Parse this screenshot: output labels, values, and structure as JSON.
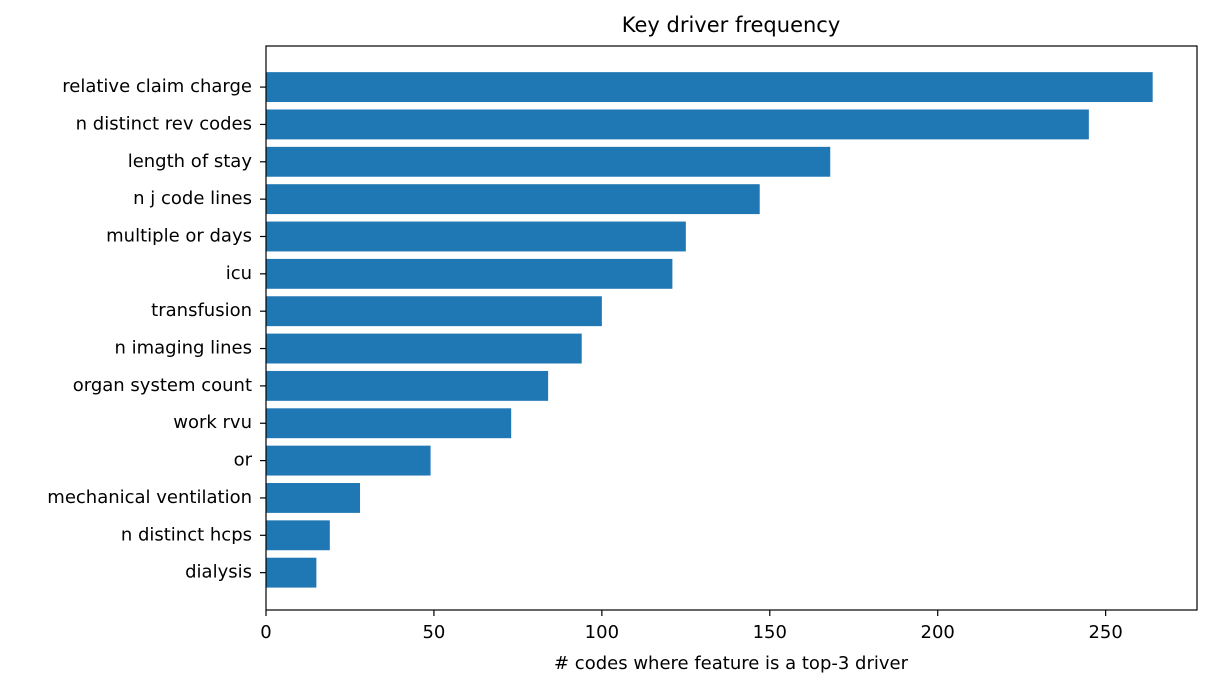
{
  "chart_data": {
    "type": "barh",
    "title": "Key driver frequency",
    "x_label": "# codes where feature is a top-3 driver",
    "categories": [
      "relative claim charge",
      "n distinct rev codes",
      "length of stay",
      "n j code lines",
      "multiple or days",
      "icu",
      "transfusion",
      "n imaging lines",
      "organ system count",
      "work rvu",
      "or",
      "mechanical ventilation",
      "n distinct hcps",
      "dialysis"
    ],
    "values": [
      264,
      245,
      168,
      147,
      125,
      121,
      100,
      94,
      84,
      73,
      49,
      28,
      19,
      15
    ],
    "color": "#1f77b4",
    "xlim": [
      0,
      277.2
    ],
    "xticks": [
      0,
      50,
      100,
      150,
      200,
      250
    ],
    "grid": false
  }
}
